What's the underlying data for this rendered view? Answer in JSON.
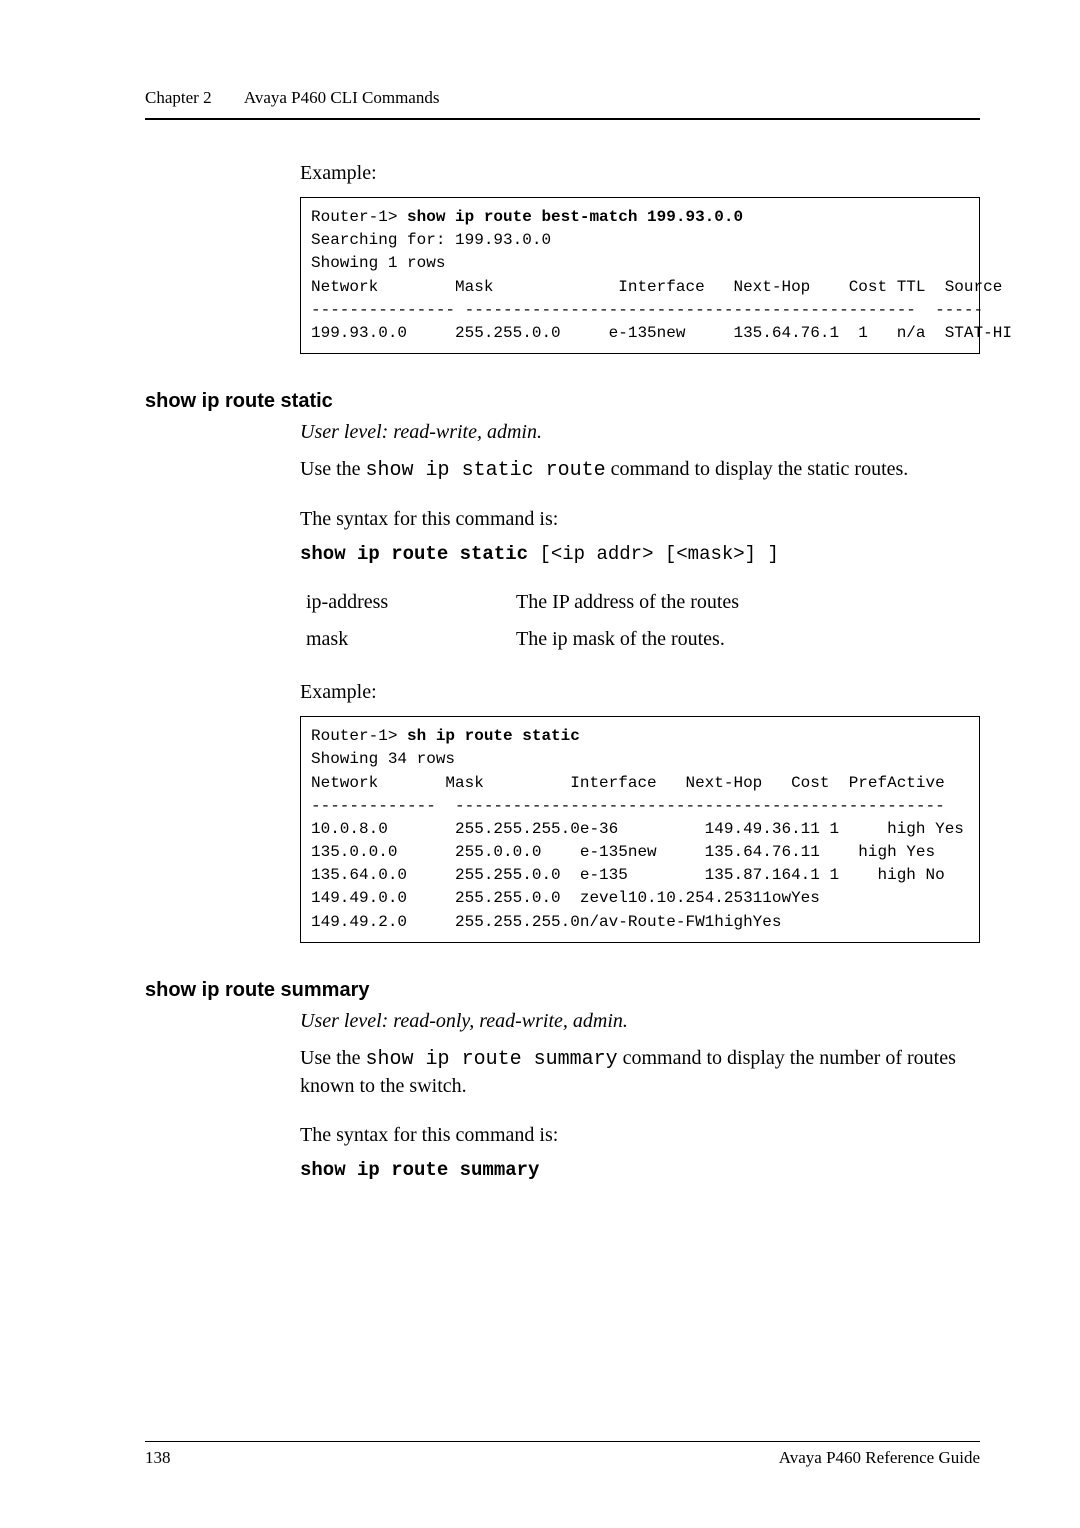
{
  "header": {
    "chapter_label": "Chapter 2",
    "chapter_title": "Avaya P460 CLI Commands"
  },
  "sec1": {
    "example_label": "Example:",
    "code_lines": [
      {
        "pre": "Router-1> ",
        "bold": "show ip route best-match 199.93.0.0"
      },
      {
        "plain": "Searching for: 199.93.0.0"
      },
      {
        "plain": "Showing 1 rows"
      },
      {
        "plain": "Network        Mask             Interface   Next-Hop    Cost TTL  Source"
      },
      {
        "plain": "--------------- -----------------------------------------------  -----"
      },
      {
        "plain": "199.93.0.0     255.255.0.0     e-135new     135.64.76.1  1   n/a  STAT-HI"
      }
    ]
  },
  "sec2": {
    "heading": "show ip route static",
    "userlevel": "User level: read-write, admin.",
    "usage_pre": "Use the ",
    "usage_cmd": "show ip static route",
    "usage_post": " command to display the static routes.",
    "syntax_intro": "The syntax for this command is:",
    "syntax_bold": "show ip route static",
    "syntax_rest": " [<ip addr> [<mask>] ]",
    "params": [
      {
        "k": "ip-address",
        "v": "The IP address of the routes"
      },
      {
        "k": "mask",
        "v": "The ip mask of the routes."
      }
    ],
    "example_label": "Example:",
    "code_lines": [
      {
        "pre": "Router-1> ",
        "bold": "sh ip route static"
      },
      {
        "plain": "Showing 34 rows"
      },
      {
        "plain": "Network       Mask         Interface   Next-Hop   Cost  PrefActive"
      },
      {
        "plain": "-------------  ---------------------------------------------------"
      },
      {
        "plain": "10.0.8.0       255.255.255.0e-36         149.49.36.11 1     high Yes"
      },
      {
        "plain": "135.0.0.0      255.0.0.0    e-135new     135.64.76.11    high Yes"
      },
      {
        "plain": "135.64.0.0     255.255.0.0  e-135        135.87.164.1 1    high No"
      },
      {
        "plain": "149.49.0.0     255.255.0.0  zevel10.10.254.25311owYes"
      },
      {
        "plain": "149.49.2.0     255.255.255.0n/av-Route-FW1highYes"
      }
    ]
  },
  "sec3": {
    "heading": "show ip route summary",
    "userlevel": "User level: read-only, read-write, admin.",
    "usage_pre": "Use the ",
    "usage_cmd": "show ip route summary",
    "usage_post": " command to display the number of routes known to the switch.",
    "syntax_intro": "The syntax for this command is:",
    "syntax_bold": "show ip route summary"
  },
  "footer": {
    "page_no": "138",
    "doc_title": "Avaya P460 Reference Guide"
  }
}
